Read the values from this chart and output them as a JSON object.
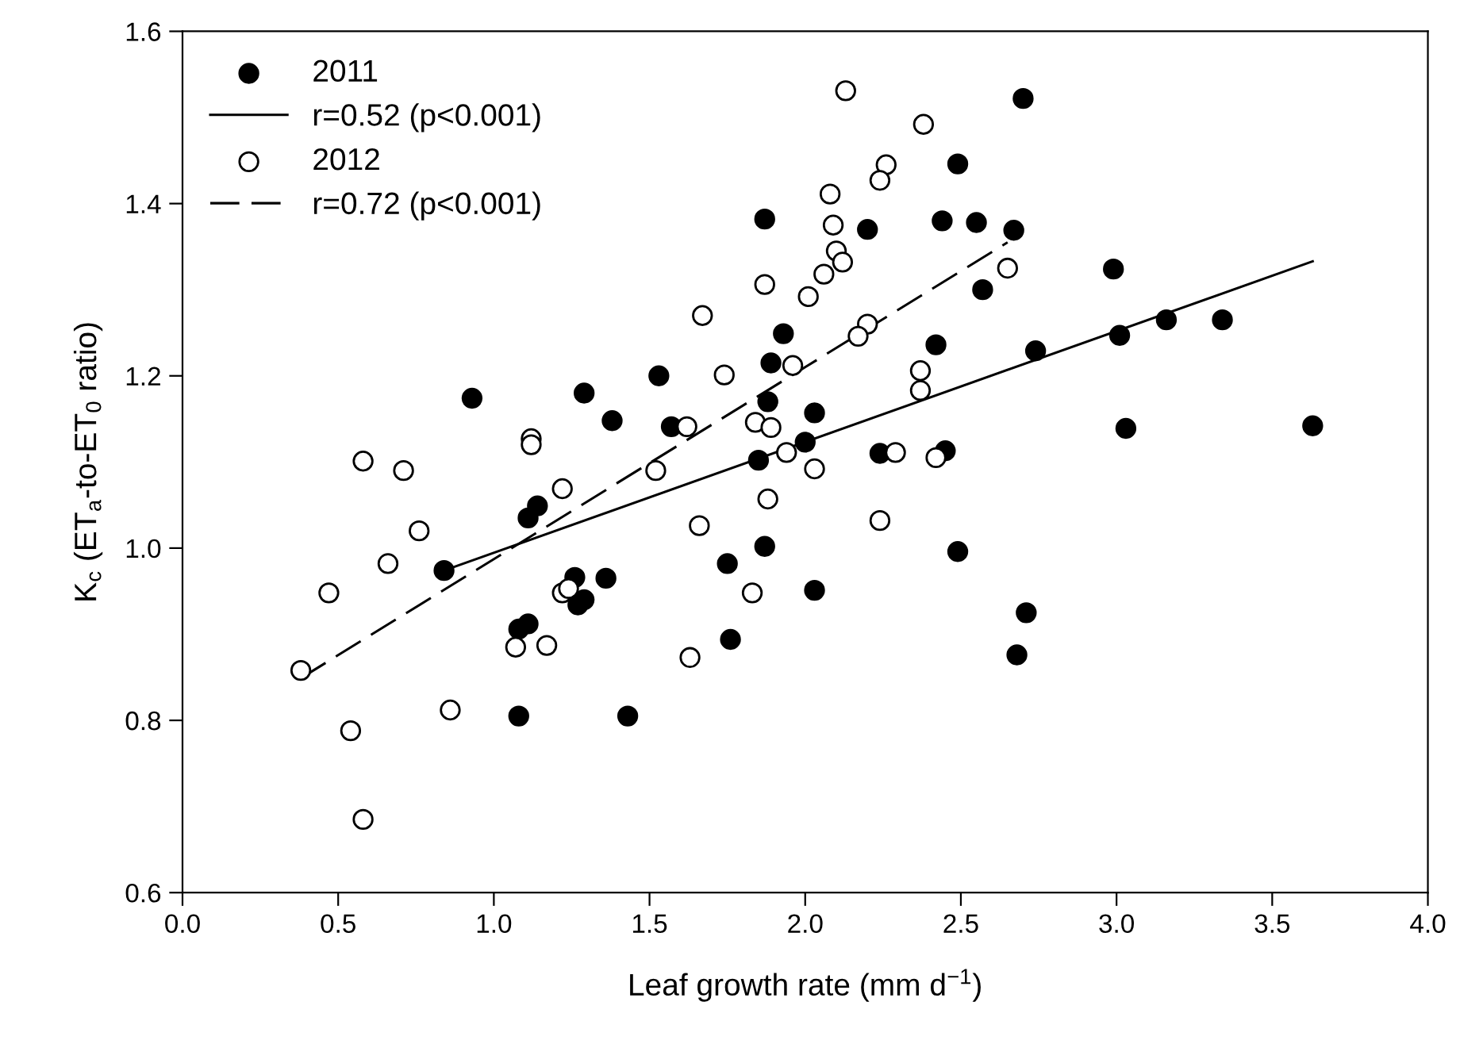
{
  "chart_data": {
    "type": "scatter",
    "xlabel": "Leaf growth rate (mm d$^{−1}$)",
    "ylabel": "K$_{c}$ (ET$_{a}$-to-ET$_{0}$ ratio)",
    "xlim": [
      0,
      4
    ],
    "ylim": [
      0.6,
      1.6
    ],
    "xticks": [
      {
        "value": 0,
        "label": "0.0"
      },
      0.5,
      {
        "value": 1,
        "label": "1.0"
      },
      1.5,
      {
        "value": 2,
        "label": "2.0"
      },
      2.5,
      {
        "value": 3,
        "label": "3.0"
      },
      3.5,
      {
        "value": 4,
        "label": "4.0"
      }
    ],
    "yticks": [
      0.6,
      0.8,
      {
        "value": 1,
        "label": "1.0"
      },
      1.2,
      1.4,
      1.6
    ],
    "grid": false,
    "legend": "top left",
    "series": [
      {
        "name": "2011",
        "marker": "circle",
        "color": "#000000",
        "x": [
          1.87,
          0.93,
          1.29,
          1.53,
          1.38,
          1.57,
          1.93,
          1.89,
          1.88,
          2.03,
          2.0,
          1.85,
          1.14,
          2.7,
          2.49,
          2.2,
          2.44,
          2.55,
          2.67,
          2.57,
          2.99,
          3.16,
          3.34,
          3.01,
          2.74,
          2.42,
          2.24,
          2.45,
          3.03,
          3.63,
          1.11,
          0.84,
          1.26,
          1.36,
          1.29,
          1.27,
          1.11,
          1.08,
          1.75,
          1.87,
          2.03,
          1.76,
          1.08,
          1.43,
          2.49,
          2.71,
          2.68
        ],
        "values": [
          1.382,
          1.174,
          1.18,
          1.2,
          1.148,
          1.141,
          1.249,
          1.215,
          1.17,
          1.157,
          1.123,
          1.102,
          1.049,
          1.522,
          1.446,
          1.37,
          1.38,
          1.378,
          1.369,
          1.3,
          1.324,
          1.265,
          1.265,
          1.247,
          1.229,
          1.236,
          1.11,
          1.113,
          1.139,
          1.142,
          1.035,
          0.974,
          0.966,
          0.965,
          0.94,
          0.934,
          0.912,
          0.906,
          0.982,
          1.002,
          0.951,
          0.894,
          0.805,
          0.805,
          0.996,
          0.925,
          0.876
        ]
      },
      {
        "name": "r=0.52 (p<0.001)",
        "type": "line",
        "line_style": "solid",
        "color": "#000000",
        "x": [
          0.84,
          3.63
        ],
        "values": [
          0.974,
          1.333
        ]
      },
      {
        "name": "2012",
        "marker": "circle",
        "color": "#ffffff",
        "x": [
          2.13,
          2.08,
          2.09,
          2.1,
          2.12,
          2.06,
          2.01,
          2.38,
          2.26,
          2.24,
          2.65,
          2.2,
          2.17,
          2.37,
          2.37,
          2.29,
          2.42,
          2.03,
          1.87,
          1.67,
          1.74,
          1.96,
          1.62,
          1.84,
          1.89,
          1.94,
          1.88,
          1.52,
          1.12,
          1.12,
          0.58,
          0.71,
          1.22,
          0.76,
          0.66,
          0.47,
          0.38,
          0.54,
          0.58,
          0.86,
          1.07,
          1.17,
          1.22,
          1.24,
          1.66,
          1.83,
          1.63,
          2.24
        ],
        "values": [
          1.531,
          1.411,
          1.375,
          1.345,
          1.332,
          1.318,
          1.292,
          1.492,
          1.445,
          1.427,
          1.325,
          1.26,
          1.246,
          1.206,
          1.183,
          1.111,
          1.105,
          1.092,
          1.306,
          1.27,
          1.201,
          1.212,
          1.141,
          1.146,
          1.14,
          1.111,
          1.057,
          1.09,
          1.127,
          1.12,
          1.101,
          1.09,
          1.069,
          1.02,
          0.982,
          0.948,
          0.858,
          0.788,
          0.685,
          0.812,
          0.885,
          0.887,
          0.948,
          0.953,
          1.026,
          0.948,
          0.873,
          1.032
        ]
      },
      {
        "name": "r=0.72 (p<0.001)",
        "type": "line",
        "line_style": "dashed",
        "color": "#000000",
        "x": [
          0.38,
          2.65
        ],
        "values": [
          0.849,
          1.355
        ]
      }
    ]
  }
}
